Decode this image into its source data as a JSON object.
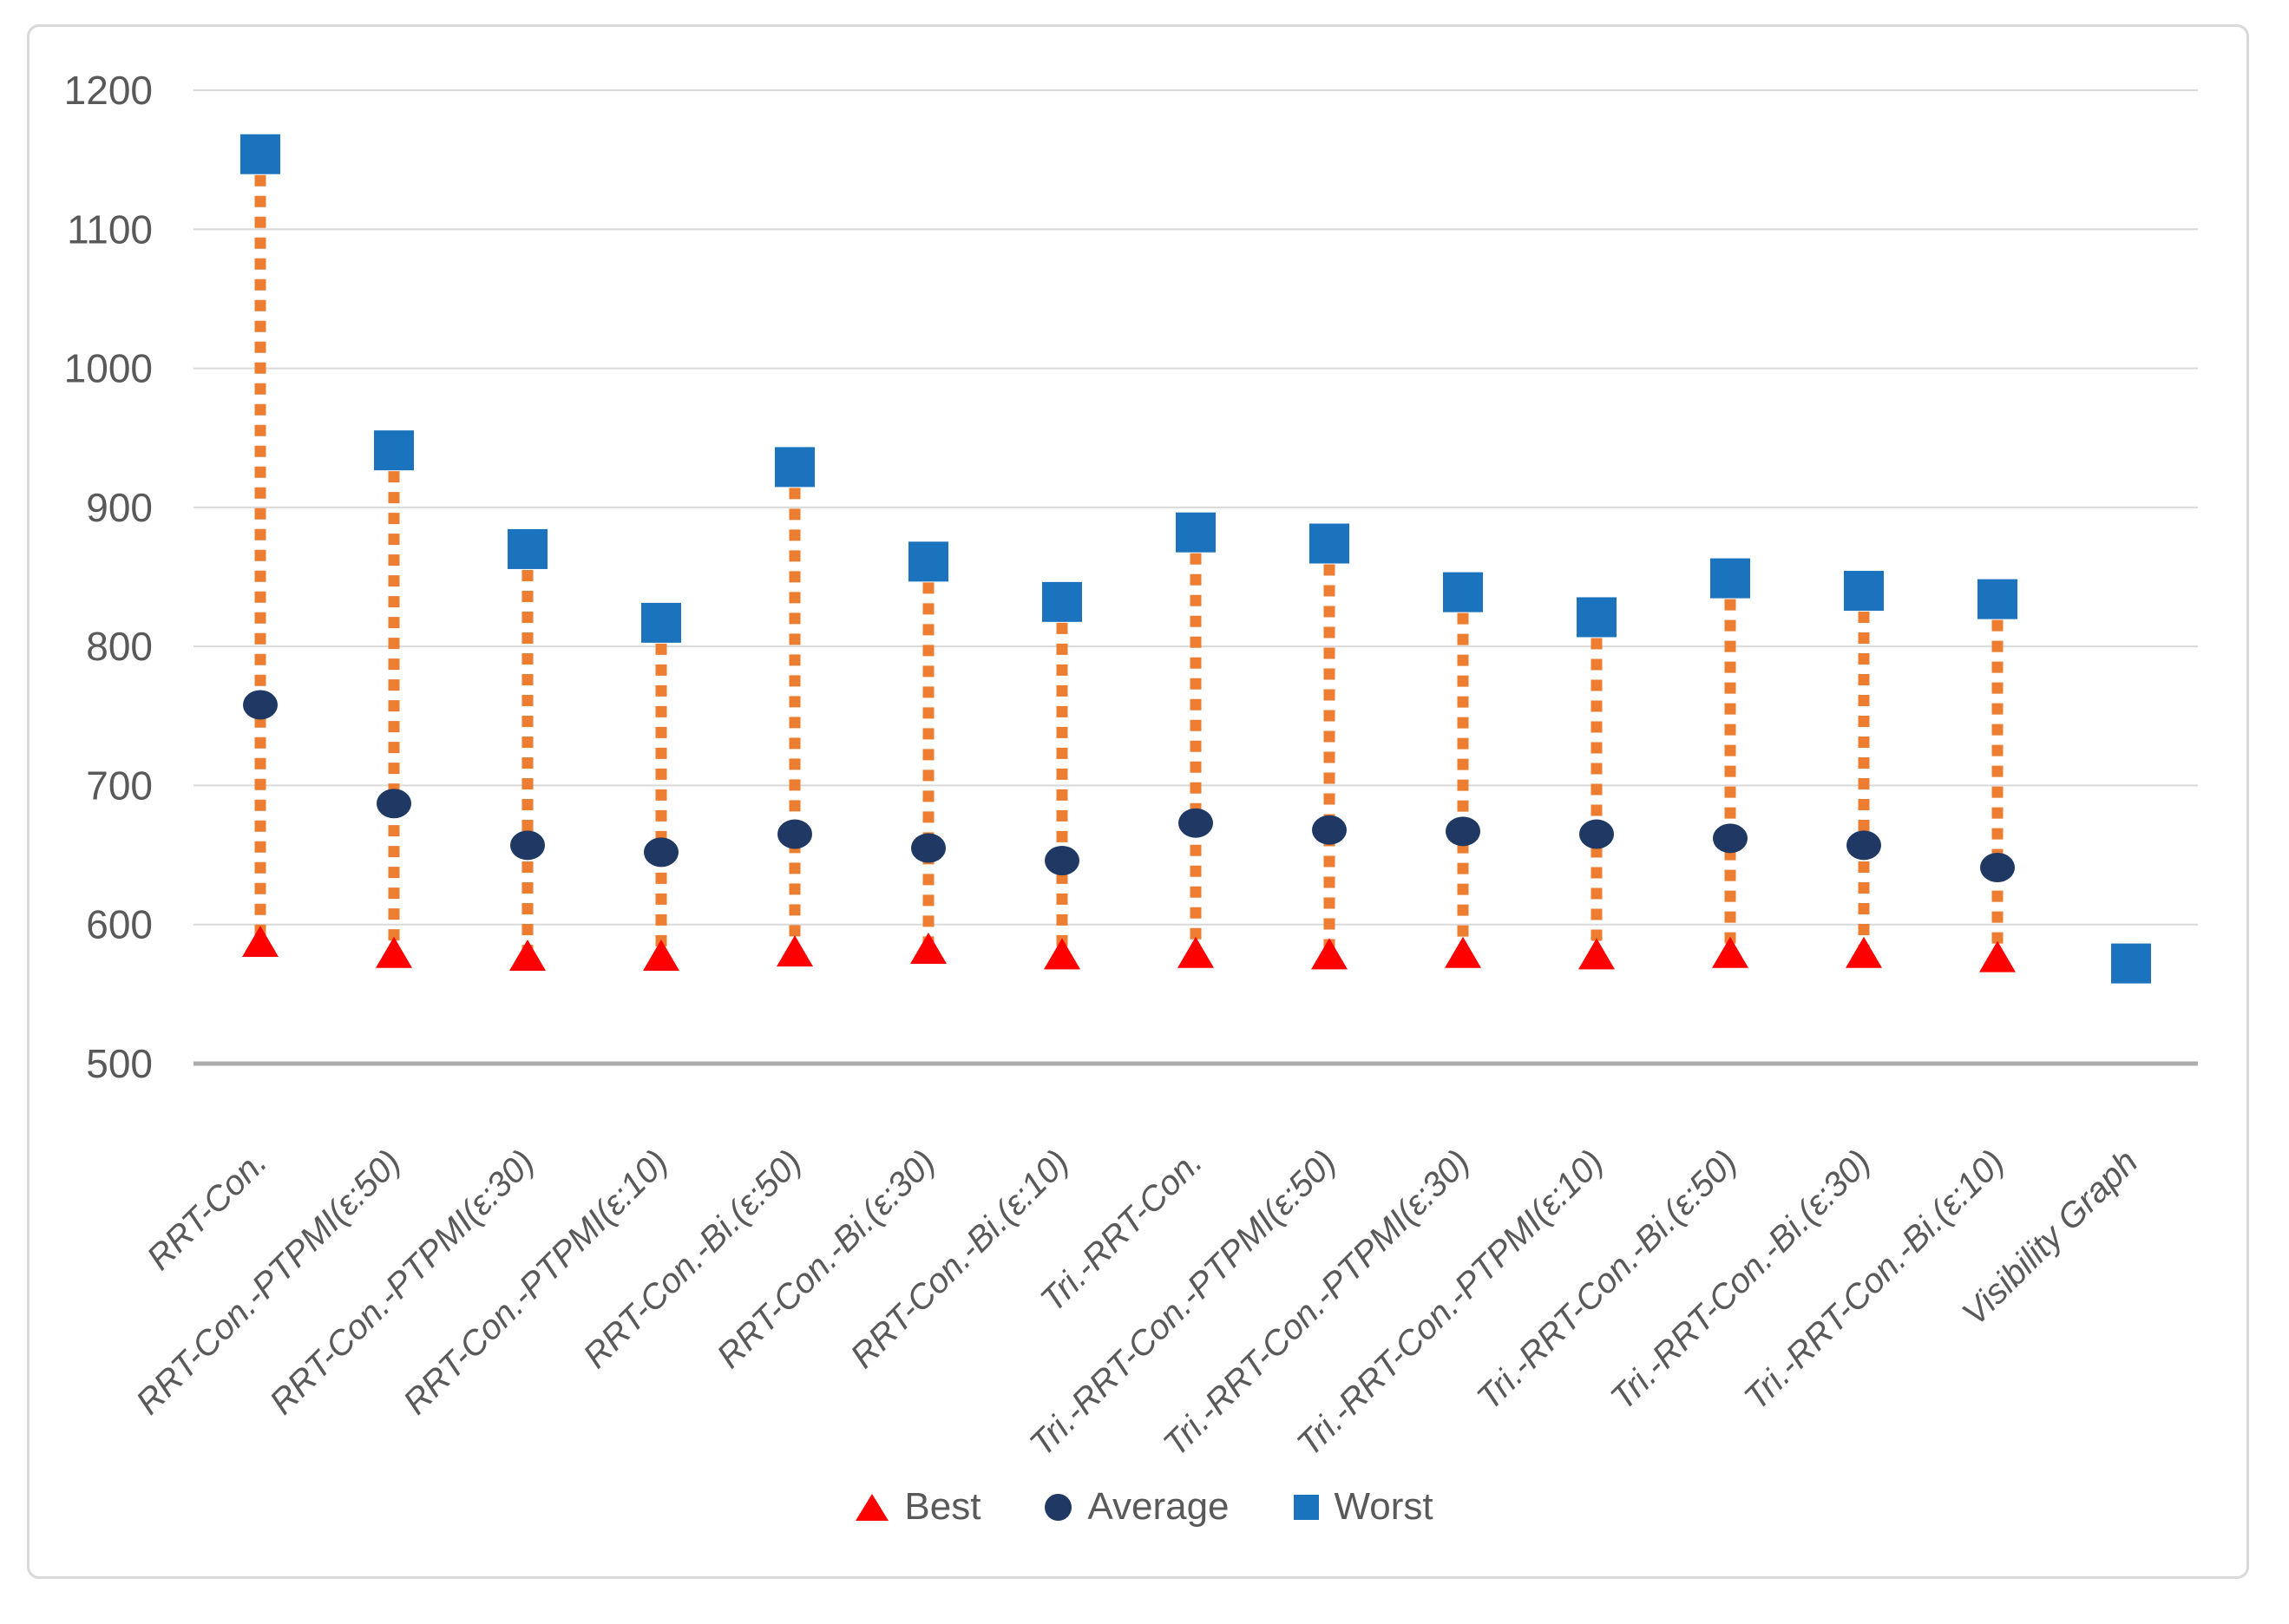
{
  "chart_data": {
    "type": "scatter",
    "subtype": "high-low-stock",
    "title": "",
    "xlabel": "",
    "ylabel": "",
    "categories": [
      "RRT-Con.",
      "RRT-Con.-PTPMI(ε:50)",
      "RRT-Con.-PTPMI(ε:30)",
      "RRT-Con.-PTPMI(ε:10)",
      "RRT-Con.-Bi.(ε:50)",
      "RRT-Con.-Bi.(ε:30)",
      "RRT-Con.-Bi.(ε:10)",
      "Tri.-RRT-Con.",
      "Tri.-RRT-Con.-PTPMI(ε:50)",
      "Tri.-RRT-Con.-PTPMI(ε:30)",
      "Tri.-RRT-Con.-PTPMI(ε:10)",
      "Tri.-RRT-Con.-Bi.(ε:50)",
      "Tri.-RRT-Con.-Bi.(ε:30)",
      "Tri.-RRT-Con.-Bi.(ε:10)",
      "Visibility Graph"
    ],
    "series": [
      {
        "name": "Best",
        "marker": "triangle",
        "color": "#FF0000",
        "values": [
          588,
          580,
          578,
          578,
          581,
          583,
          579,
          580,
          579,
          580,
          579,
          580,
          580,
          577,
          572
        ]
      },
      {
        "name": "Average",
        "marker": "circle",
        "color": "#1F3864",
        "values": [
          758,
          687,
          657,
          652,
          665,
          655,
          646,
          673,
          668,
          667,
          665,
          662,
          657,
          641,
          572
        ]
      },
      {
        "name": "Worst",
        "marker": "square",
        "color": "#1B73BE",
        "values": [
          1154,
          941,
          870,
          817,
          929,
          861,
          832,
          882,
          874,
          839,
          821,
          849,
          840,
          834,
          572
        ]
      }
    ],
    "hilo_line_color": "#ED7D31",
    "ylim": [
      500,
      1200
    ],
    "yticks": [
      500,
      600,
      700,
      800,
      900,
      1000,
      1100,
      1200
    ],
    "grid": true,
    "gridline_color": "#D9D9D9",
    "axis_line_color": "#ACACAC",
    "axis_text_color": "#595959",
    "legend_position": "bottom"
  },
  "legend": {
    "items": [
      {
        "label": "Best",
        "icon": "triangle-icon"
      },
      {
        "label": "Average",
        "icon": "circle-icon"
      },
      {
        "label": "Worst",
        "icon": "square-icon"
      }
    ]
  }
}
